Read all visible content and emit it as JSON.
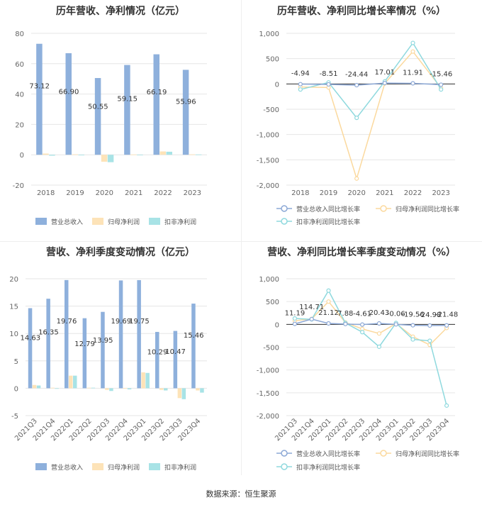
{
  "source_text": "数据来源：恒生聚源",
  "colors": {
    "revenue": "#8eb0dc",
    "net_profit": "#fde3b8",
    "deducted_profit": "#a8e3e6",
    "revenue_line": "#8ca8d6",
    "net_profit_line": "#fbd99e",
    "deducted_line": "#8fd9de",
    "grid": "#e6e6e6",
    "axis_text": "#666666"
  },
  "chart_data": [
    {
      "type": "bar",
      "title": "历年营收、净利情况（亿元）",
      "categories": [
        "2018",
        "2019",
        "2020",
        "2021",
        "2022",
        "2023"
      ],
      "series": [
        {
          "name": "营业总收入",
          "values": [
            73.12,
            66.9,
            50.55,
            59.15,
            66.19,
            55.96
          ]
        },
        {
          "name": "归母净利润",
          "values": [
            0.8,
            0.3,
            -4.6,
            0.2,
            2.2,
            0.3
          ]
        },
        {
          "name": "扣非净利润",
          "values": [
            -0.6,
            -0.4,
            -4.9,
            -0.3,
            2.0,
            0.2
          ]
        }
      ],
      "labels": [
        "73.12",
        "66.90",
        "50.55",
        "59.15",
        "66.19",
        "55.96"
      ],
      "ylim": [
        -20,
        80
      ],
      "yticks": [
        "80",
        "60",
        "40",
        "20",
        "0",
        "-20"
      ],
      "legend": [
        "营业总收入",
        "归母净利润",
        "扣非净利润"
      ]
    },
    {
      "type": "line",
      "title": "历年营收、净利同比增长率情况（%）",
      "categories": [
        "2018",
        "2019",
        "2020",
        "2021",
        "2022",
        "2023"
      ],
      "series": [
        {
          "name": "营业总收入同比增长率",
          "values": [
            -4.94,
            -8.51,
            -24.44,
            17.01,
            11.91,
            -15.46
          ]
        },
        {
          "name": "归母净利润同比增长率",
          "values": [
            -60,
            -70,
            -1870,
            10,
            640,
            -80
          ]
        },
        {
          "name": "扣非净利润同比增长率",
          "values": [
            -110,
            30,
            -670,
            50,
            810,
            -110
          ]
        }
      ],
      "labels": [
        "-4.94",
        "-8.51",
        "-24.44",
        "17.01",
        "11.91",
        "-15.46"
      ],
      "ylim": [
        -2000,
        1000
      ],
      "yticks": [
        "1,000",
        "500",
        "0",
        "-500",
        "-1,000",
        "-1,500",
        "-2,000"
      ],
      "legend": [
        "营业总收入同比增长率",
        "归母净利润同比增长率",
        "扣非净利润同比增长率"
      ]
    },
    {
      "type": "bar",
      "title": "营收、净利季度变动情况（亿元）",
      "categories": [
        "2021Q3",
        "2021Q4",
        "2022Q1",
        "2022Q2",
        "2022Q3",
        "2022Q4",
        "2023Q1",
        "2023Q2",
        "2023Q3",
        "2023Q4"
      ],
      "series": [
        {
          "name": "营业总收入",
          "values": [
            14.63,
            16.35,
            19.76,
            12.79,
            13.95,
            19.69,
            19.75,
            10.29,
            10.47,
            15.46
          ]
        },
        {
          "name": "归母净利润",
          "values": [
            0.6,
            0.1,
            2.3,
            0.1,
            -0.3,
            0.05,
            2.9,
            -0.3,
            -1.8,
            -0.4
          ]
        },
        {
          "name": "扣非净利润",
          "values": [
            0.5,
            -0.05,
            2.3,
            0.1,
            -0.5,
            -0.2,
            2.8,
            -0.4,
            -2.0,
            -0.8
          ]
        }
      ],
      "labels": [
        "14.63",
        "16.35",
        "19.76",
        "12.79",
        "13.95",
        "19.69",
        "19.75",
        "10.29",
        "10.47",
        "15.46"
      ],
      "ylim": [
        -5,
        20
      ],
      "yticks": [
        "20",
        "15",
        "10",
        "5",
        "0",
        "-5"
      ],
      "legend": [
        "营业总收入",
        "归母净利润",
        "扣非净利润"
      ]
    },
    {
      "type": "line",
      "title": "营收、净利同比增长率季度变动情况（%）",
      "categories": [
        "2021Q3",
        "2021Q4",
        "2022Q1",
        "2022Q2",
        "2022Q3",
        "2022Q4",
        "2023Q1",
        "2023Q2",
        "2023Q3",
        "2023Q4"
      ],
      "series": [
        {
          "name": "营业总收入同比增长率",
          "values": [
            11.19,
            114.71,
            21.12,
            7.88,
            -4.61,
            20.43,
            -0.06,
            -19.56,
            -24.98,
            -21.48
          ]
        },
        {
          "name": "归母净利润同比增长率",
          "values": [
            80,
            120,
            500,
            40,
            -100,
            -200,
            20,
            -270,
            -450,
            -80
          ]
        },
        {
          "name": "扣非净利润同比增长率",
          "values": [
            130,
            110,
            740,
            30,
            -170,
            -490,
            30,
            -330,
            -360,
            -1780
          ]
        }
      ],
      "labels": [
        "11.19",
        "114.71",
        "21.12",
        "7.88",
        "-4.61",
        "20.43",
        "-0.06",
        "-19.56",
        "-24.98",
        "-21.48"
      ],
      "ylim": [
        -2000,
        1000
      ],
      "yticks": [
        "1,000",
        "500",
        "0",
        "-500",
        "-1,000",
        "-1,500",
        "-2,000"
      ],
      "legend": [
        "营业总收入同比增长率",
        "归母净利润同比增长率",
        "扣非净利润同比增长率"
      ]
    }
  ]
}
